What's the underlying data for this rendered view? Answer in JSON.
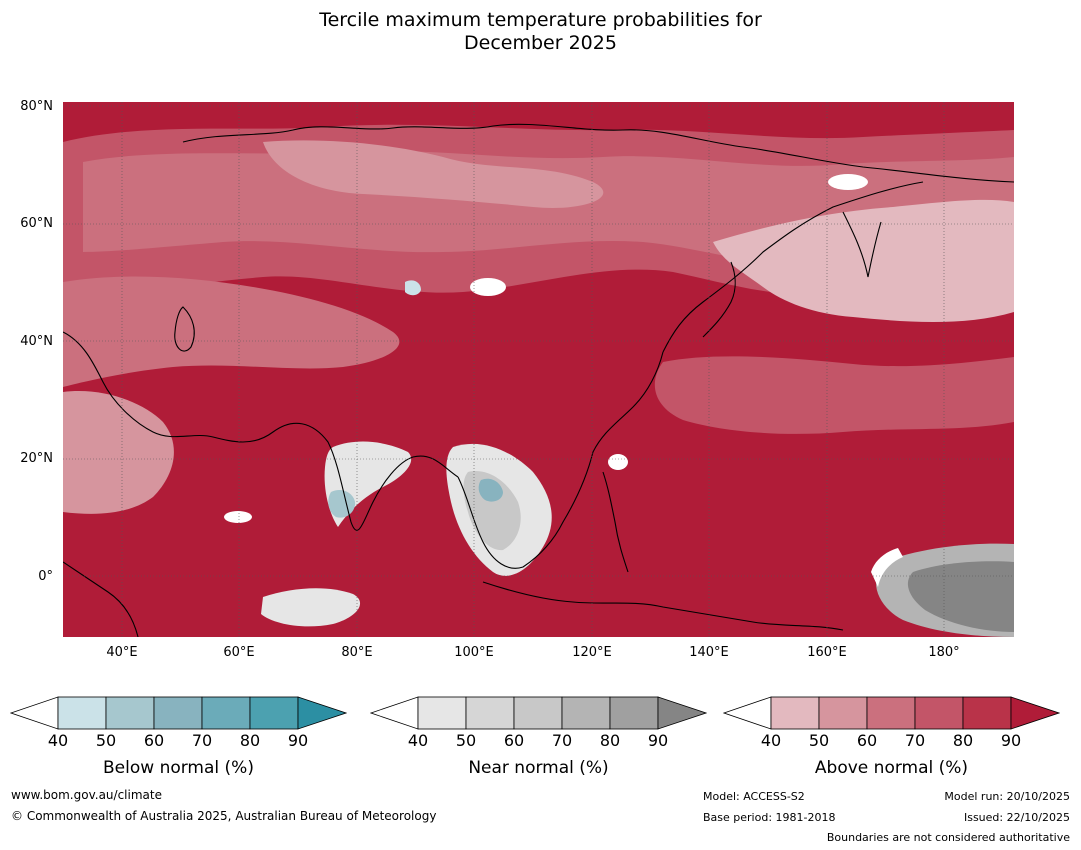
{
  "title": {
    "line1": "Tercile maximum temperature probabilities for",
    "line2": "December 2025"
  },
  "map": {
    "lat_labels": [
      "80°N",
      "60°N",
      "40°N",
      "20°N",
      "0°"
    ],
    "lon_labels": [
      "40°E",
      "60°E",
      "80°E",
      "100°E",
      "120°E",
      "140°E",
      "160°E",
      "180°"
    ],
    "region": "Asia and western Pacific",
    "dominant_category": "Above normal"
  },
  "legends": {
    "below": {
      "caption": "Below normal (%)",
      "ticks": [
        "40",
        "50",
        "60",
        "70",
        "80",
        "90"
      ],
      "colors": [
        "#ffffff",
        "#cbe2e8",
        "#a6c7ce",
        "#88b3bf",
        "#6babb9",
        "#4ca1b0",
        "#2c8fa3"
      ]
    },
    "near": {
      "caption": "Near normal (%)",
      "ticks": [
        "40",
        "50",
        "60",
        "70",
        "80",
        "90"
      ],
      "colors": [
        "#ffffff",
        "#e6e6e6",
        "#d6d6d6",
        "#c8c8c8",
        "#b4b4b4",
        "#a0a0a0",
        "#858585"
      ]
    },
    "above": {
      "caption": "Above normal (%)",
      "ticks": [
        "40",
        "50",
        "60",
        "70",
        "80",
        "90"
      ],
      "colors": [
        "#ffffff",
        "#e3b9bf",
        "#d6959e",
        "#cb707e",
        "#c35568",
        "#b93349",
        "#b01c38"
      ]
    }
  },
  "footer": {
    "website": "www.bom.gov.au/climate",
    "copyright": "© Commonwealth of Australia 2025, Australian Bureau of Meteorology",
    "model": "Model: ACCESS-S2",
    "base_period": "Base period: 1981-2018",
    "model_run": "Model run: 20/10/2025",
    "issued": "Issued: 22/10/2025",
    "disclaimer": "Boundaries are not considered authoritative"
  }
}
